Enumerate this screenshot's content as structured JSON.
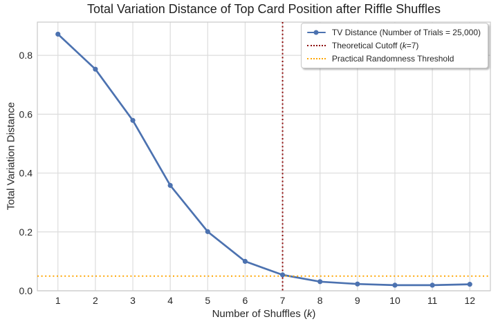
{
  "figure": {
    "title": "Total Variation Distance of Top Card Position after Riffle Shuffles",
    "ylabel": "Total Variation Distance",
    "xlabel": {
      "pre": "Number of Shuffles (",
      "var": "k",
      "post": ")"
    }
  },
  "legend": {
    "position": "upper right",
    "items": [
      {
        "label": "TV Distance (Number of Trials = 25,000)",
        "style": "line-with-marker",
        "color": "#4C72B0"
      },
      {
        "label_pre": "Theoretical Cutoff (",
        "label_var": "k",
        "label_post": "=7)",
        "style": "dotted",
        "color": "#8B0000"
      },
      {
        "label": "Practical Randomness Threshold",
        "style": "dotted",
        "color": "#FFA500"
      }
    ]
  },
  "colors": {
    "tv_line": "#4C72B0",
    "cutoff": "#8B0000",
    "threshold": "#FFA500",
    "grid": "#DCDCDC",
    "spine": "#C9C9C9",
    "text": "#262626"
  },
  "chart_data": {
    "type": "line",
    "title": "Total Variation Distance of Top Card Position after Riffle Shuffles",
    "xlabel": "Number of Shuffles (k)",
    "ylabel": "Total Variation Distance",
    "x": [
      1,
      2,
      3,
      4,
      5,
      6,
      7,
      8,
      9,
      10,
      11,
      12
    ],
    "series": [
      {
        "name": "TV Distance (Number of Trials = 25,000)",
        "values": [
          0.872,
          0.753,
          0.579,
          0.358,
          0.201,
          0.1,
          0.054,
          0.031,
          0.023,
          0.019,
          0.019,
          0.022
        ],
        "color": "#4C72B0",
        "marker": "circle"
      }
    ],
    "reference_lines": [
      {
        "name": "Theoretical Cutoff (k=7)",
        "orientation": "vertical",
        "x": 7,
        "style": "dotted",
        "color": "#8B0000"
      },
      {
        "name": "Practical Randomness Threshold",
        "orientation": "horizontal",
        "y": 0.05,
        "style": "dotted",
        "color": "#FFA500"
      }
    ],
    "xticks": [
      1,
      2,
      3,
      4,
      5,
      6,
      7,
      8,
      9,
      10,
      11,
      12
    ],
    "yticks": [
      0.0,
      0.2,
      0.4,
      0.6,
      0.8
    ],
    "xlim": [
      0.45,
      12.55
    ],
    "ylim": [
      0,
      0.913
    ],
    "grid": true,
    "legend_position": "upper right"
  }
}
